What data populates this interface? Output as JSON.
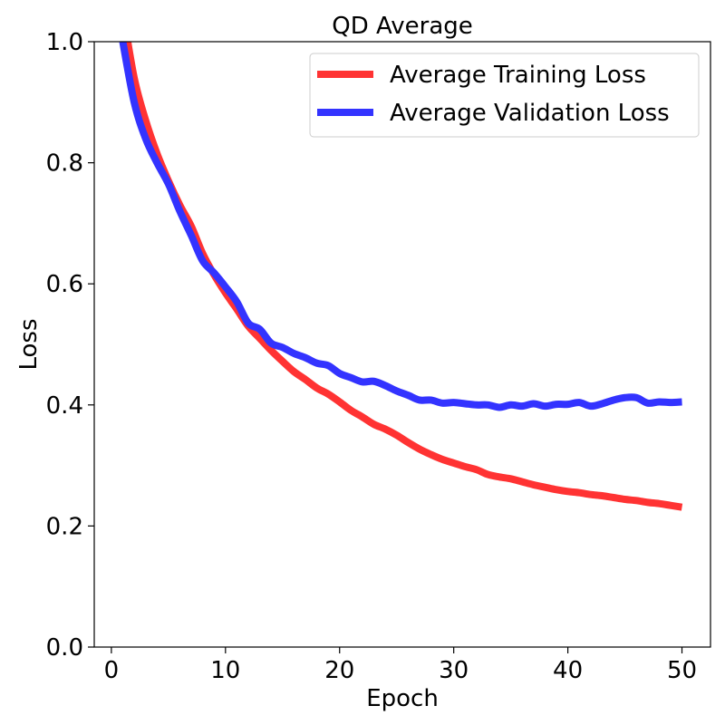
{
  "chart_data": {
    "type": "line",
    "title": "QD Average",
    "xlabel": "Epoch",
    "ylabel": "Loss",
    "xlim": [
      -1.5,
      52.5
    ],
    "ylim": [
      0.0,
      1.0
    ],
    "xticks": [
      0,
      10,
      20,
      30,
      40,
      50
    ],
    "yticks": [
      0.0,
      0.2,
      0.4,
      0.6,
      0.8,
      1.0
    ],
    "xtick_labels": [
      "0",
      "10",
      "20",
      "30",
      "40",
      "50"
    ],
    "ytick_labels": [
      "0.0",
      "0.2",
      "0.4",
      "0.6",
      "0.8",
      "1.0"
    ],
    "grid": false,
    "legend_position": "top-right",
    "series": [
      {
        "name": "Average Training Loss",
        "color": "#ff3333",
        "x": [
          1,
          2,
          3,
          4,
          5,
          6,
          7,
          8,
          9,
          10,
          11,
          12,
          13,
          14,
          15,
          16,
          17,
          18,
          19,
          20,
          21,
          22,
          23,
          24,
          25,
          26,
          27,
          28,
          29,
          30,
          31,
          32,
          33,
          34,
          35,
          36,
          37,
          38,
          39,
          40,
          41,
          42,
          43,
          44,
          45,
          46,
          47,
          48,
          49,
          50
        ],
        "y": [
          1.05,
          0.94,
          0.87,
          0.815,
          0.77,
          0.73,
          0.695,
          0.65,
          0.615,
          0.585,
          0.558,
          0.53,
          0.51,
          0.49,
          0.472,
          0.455,
          0.442,
          0.428,
          0.418,
          0.405,
          0.391,
          0.38,
          0.368,
          0.36,
          0.35,
          0.338,
          0.327,
          0.318,
          0.31,
          0.304,
          0.298,
          0.293,
          0.285,
          0.281,
          0.278,
          0.273,
          0.268,
          0.264,
          0.26,
          0.257,
          0.255,
          0.252,
          0.25,
          0.247,
          0.244,
          0.242,
          0.239,
          0.237,
          0.234,
          0.231
        ]
      },
      {
        "name": "Average Validation Loss",
        "color": "#3333ff",
        "x": [
          1,
          2,
          3,
          4,
          5,
          6,
          7,
          8,
          9,
          10,
          11,
          12,
          13,
          14,
          15,
          16,
          17,
          18,
          19,
          20,
          21,
          22,
          23,
          24,
          25,
          26,
          27,
          28,
          29,
          30,
          31,
          32,
          33,
          34,
          35,
          36,
          37,
          38,
          39,
          40,
          41,
          42,
          43,
          44,
          45,
          46,
          47,
          48,
          49,
          50
        ],
        "y": [
          1.0,
          0.9,
          0.84,
          0.8,
          0.765,
          0.72,
          0.68,
          0.638,
          0.618,
          0.595,
          0.57,
          0.535,
          0.525,
          0.502,
          0.495,
          0.485,
          0.478,
          0.469,
          0.465,
          0.452,
          0.445,
          0.438,
          0.439,
          0.432,
          0.423,
          0.416,
          0.408,
          0.408,
          0.403,
          0.404,
          0.402,
          0.4,
          0.4,
          0.396,
          0.4,
          0.398,
          0.402,
          0.398,
          0.401,
          0.401,
          0.404,
          0.398,
          0.402,
          0.408,
          0.412,
          0.412,
          0.403,
          0.405,
          0.404,
          0.405
        ]
      }
    ]
  }
}
